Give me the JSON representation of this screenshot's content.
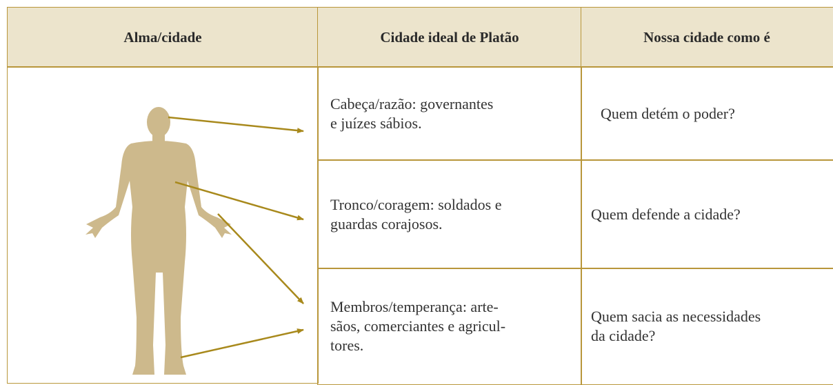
{
  "table": {
    "headers": [
      "Alma/cidade",
      "Cidade ideal de Platão",
      "Nossa cidade como é"
    ],
    "rows": [
      [
        "Cabeça/razão: governantes\ne juízes sábios.",
        "Quem detém o poder?"
      ],
      [
        "Tronco/coragem: soldados e\nguardas corajosos.",
        "Quem defende a cidade?"
      ],
      [
        "Membros/temperança: arte-\nsãos, comerciantes e agricul-\ntores.",
        "Quem sacia as necessidades\nda cidade?"
      ]
    ]
  }
}
